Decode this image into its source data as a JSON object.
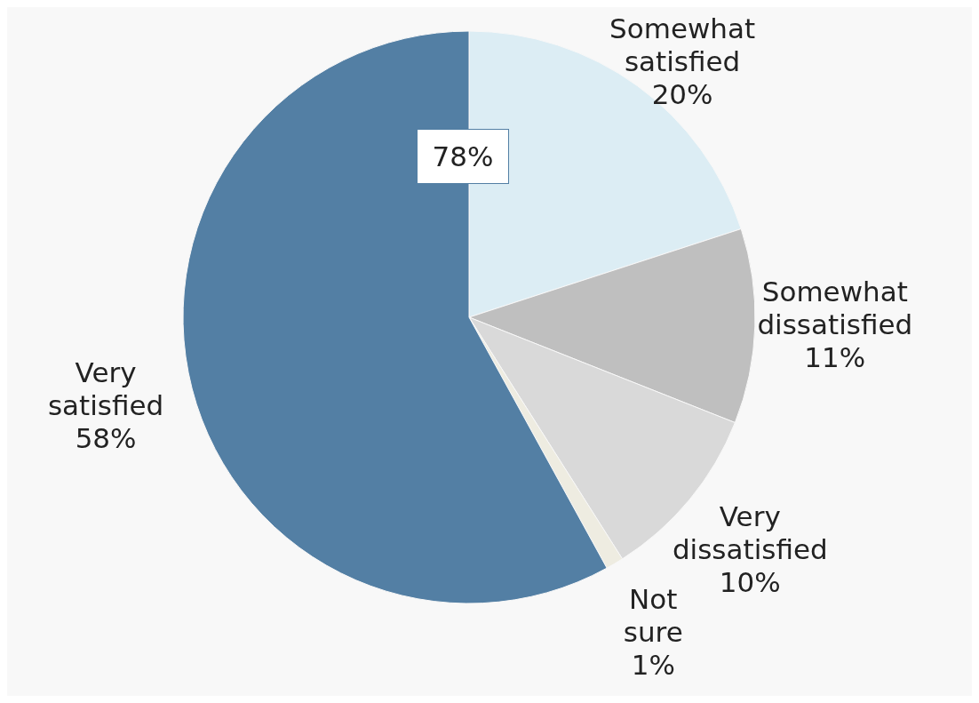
{
  "chart_data": {
    "type": "pie",
    "categories": [
      "Somewhat satisfied",
      "Somewhat dissatisfied",
      "Very dissatisfied",
      "Not sure",
      "Very satisfied"
    ],
    "values": [
      20,
      11,
      10,
      1,
      58
    ],
    "value_labels": [
      "20%",
      "11%",
      "10%",
      "1%",
      "58%"
    ],
    "colors": [
      "#dcedf4",
      "#bfbfbf",
      "#d9d9d9",
      "#eeece1",
      "#537fa4"
    ],
    "annotations": [
      "78%"
    ]
  }
}
